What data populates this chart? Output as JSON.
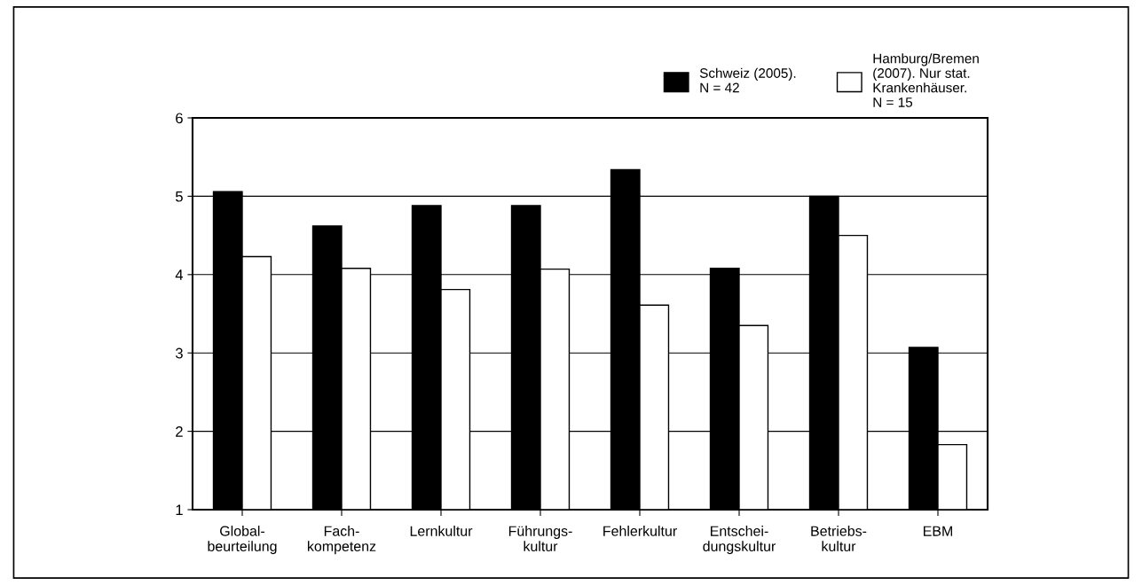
{
  "chart_data": {
    "type": "bar",
    "categories": [
      "Global-\nbeurteilung",
      "Fach-\nkompetenz",
      "Lernkultur",
      "Führungs-\nkultur",
      "Fehlerkultur",
      "Entschei-\ndungskultur",
      "Betriebs-\nkultur",
      "EBM"
    ],
    "series": [
      {
        "name": "Schweiz (2005).\nN = 42",
        "color": "#000000",
        "values": [
          5.06,
          4.62,
          4.88,
          4.88,
          5.34,
          4.08,
          5.0,
          3.07
        ]
      },
      {
        "name": "Hamburg/Bremen\n(2007). Nur stat.\nKrankenhäuser.\nN = 15",
        "color": "#ffffff",
        "values": [
          4.23,
          4.08,
          3.81,
          4.07,
          3.61,
          3.35,
          4.5,
          1.83
        ]
      }
    ],
    "ylim": [
      1,
      6
    ],
    "yticks": [
      1,
      2,
      3,
      4,
      5,
      6
    ],
    "grid": "y",
    "legend": "top right"
  }
}
